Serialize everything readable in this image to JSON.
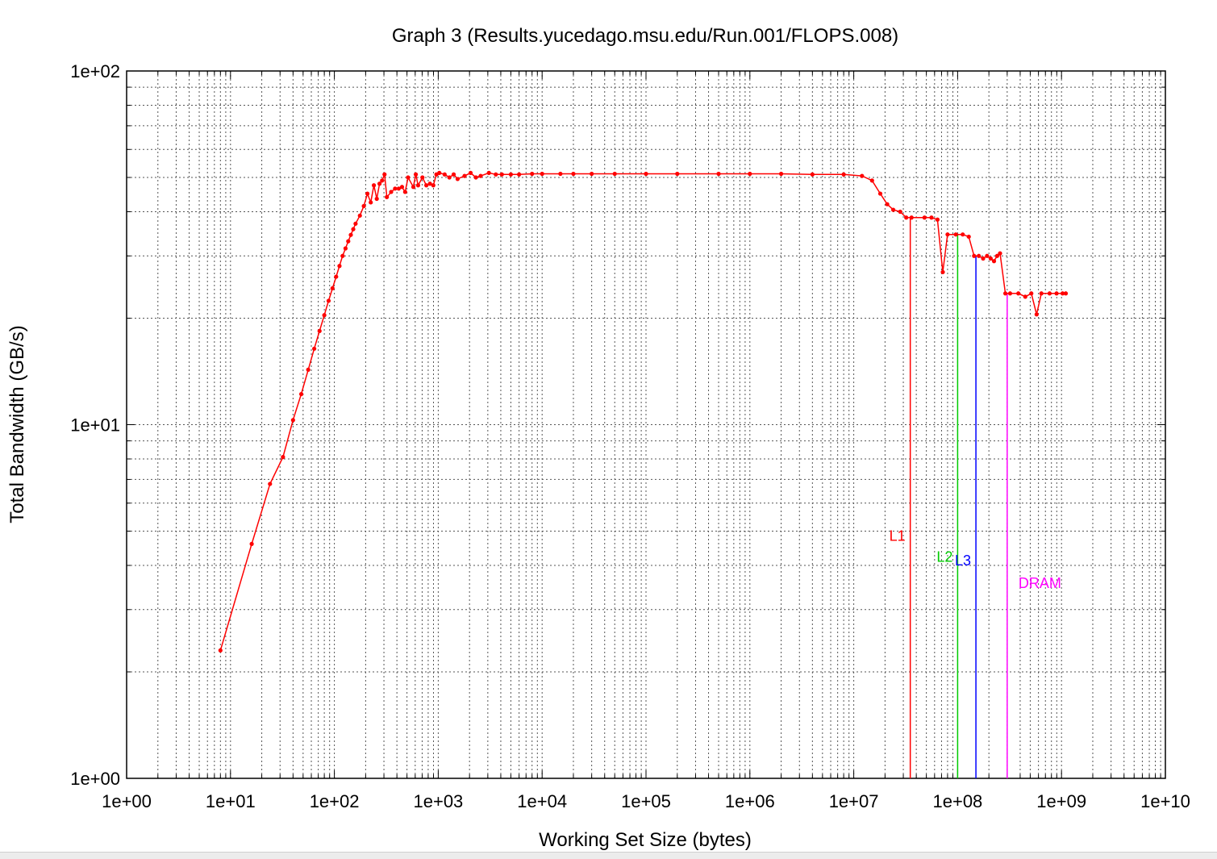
{
  "chart_data": {
    "type": "line",
    "title": "Graph 3 (Results.yucedago.msu.edu/Run.001/FLOPS.008)",
    "xlabel": "Working Set Size (bytes)",
    "ylabel": "Total Bandwidth (GB/s)",
    "x_scale": "log",
    "y_scale": "log",
    "xlim": [
      1,
      10000000000
    ],
    "ylim": [
      1,
      100
    ],
    "x_ticks": [
      "1e+00",
      "1e+01",
      "1e+02",
      "1e+03",
      "1e+04",
      "1e+05",
      "1e+06",
      "1e+07",
      "1e+08",
      "1e+09",
      "1e+10"
    ],
    "y_ticks": [
      "1e+00",
      "1e+01",
      "1e+02"
    ],
    "grid": true,
    "legend": "none",
    "series": [
      {
        "color": "#ff0000",
        "points": [
          [
            8,
            2.3
          ],
          [
            16,
            4.6
          ],
          [
            24,
            6.8
          ],
          [
            32,
            8.1
          ],
          [
            40,
            10.3
          ],
          [
            48,
            12.2
          ],
          [
            56,
            14.3
          ],
          [
            64,
            16.4
          ],
          [
            72,
            18.4
          ],
          [
            80,
            20.4
          ],
          [
            88,
            22.4
          ],
          [
            96,
            24.3
          ],
          [
            104,
            26.2
          ],
          [
            112,
            28.1
          ],
          [
            120,
            30.0
          ],
          [
            128,
            31.5
          ],
          [
            136,
            33.0
          ],
          [
            144,
            34.4
          ],
          [
            152,
            35.7
          ],
          [
            160,
            37.0
          ],
          [
            176,
            39.0
          ],
          [
            192,
            41.5
          ],
          [
            208,
            45.0
          ],
          [
            224,
            42.5
          ],
          [
            240,
            47.5
          ],
          [
            256,
            43.5
          ],
          [
            272,
            48.0
          ],
          [
            288,
            49.0
          ],
          [
            304,
            51.0
          ],
          [
            320,
            44.0
          ],
          [
            352,
            45.5
          ],
          [
            384,
            46.5
          ],
          [
            416,
            46.5
          ],
          [
            448,
            47.0
          ],
          [
            480,
            45.5
          ],
          [
            512,
            50.0
          ],
          [
            576,
            47.0
          ],
          [
            608,
            51.0
          ],
          [
            640,
            47.5
          ],
          [
            704,
            50.0
          ],
          [
            768,
            47.5
          ],
          [
            832,
            48.0
          ],
          [
            896,
            47.5
          ],
          [
            960,
            51.0
          ],
          [
            1024,
            51.5
          ],
          [
            1152,
            51.0
          ],
          [
            1280,
            50.0
          ],
          [
            1408,
            51.0
          ],
          [
            1536,
            49.5
          ],
          [
            1792,
            50.5
          ],
          [
            2048,
            51.5
          ],
          [
            2304,
            50.0
          ],
          [
            2560,
            50.5
          ],
          [
            3072,
            51.5
          ],
          [
            3584,
            51.0
          ],
          [
            4096,
            51.0
          ],
          [
            5000,
            51.0
          ],
          [
            6000,
            51.0
          ],
          [
            8000,
            51.2
          ],
          [
            10000,
            51.2
          ],
          [
            15000,
            51.2
          ],
          [
            20000,
            51.2
          ],
          [
            30000,
            51.2
          ],
          [
            50000,
            51.2
          ],
          [
            100000,
            51.2
          ],
          [
            200000,
            51.2
          ],
          [
            500000,
            51.2
          ],
          [
            1000000,
            51.2
          ],
          [
            2000000,
            51.2
          ],
          [
            4000000,
            51.0
          ],
          [
            8000000,
            51.0
          ],
          [
            12000000,
            50.5
          ],
          [
            15000000,
            49.0
          ],
          [
            18000000,
            45.0
          ],
          [
            21000000,
            42.0
          ],
          [
            24000000,
            40.5
          ],
          [
            28000000,
            40.0
          ],
          [
            32000000,
            38.5
          ],
          [
            36000000,
            38.5
          ],
          [
            48000000,
            38.5
          ],
          [
            56000000,
            38.5
          ],
          [
            64000000,
            38.0
          ],
          [
            72000000,
            27.0
          ],
          [
            80000000,
            34.5
          ],
          [
            96000000,
            34.5
          ],
          [
            112000000,
            34.5
          ],
          [
            128000000,
            34.0
          ],
          [
            144000000,
            30.0
          ],
          [
            160000000,
            30.0
          ],
          [
            176000000,
            29.5
          ],
          [
            192000000,
            30.0
          ],
          [
            208000000,
            29.5
          ],
          [
            224000000,
            29.0
          ],
          [
            240000000,
            30.0
          ],
          [
            256000000,
            30.5
          ],
          [
            288000000,
            23.5
          ],
          [
            320000000,
            23.5
          ],
          [
            384000000,
            23.5
          ],
          [
            448000000,
            23.0
          ],
          [
            512000000,
            23.5
          ],
          [
            576000000,
            20.5
          ],
          [
            640000000,
            23.5
          ],
          [
            768000000,
            23.5
          ],
          [
            896000000,
            23.5
          ],
          [
            1024000000,
            23.5
          ],
          [
            1100000000,
            23.5
          ]
        ]
      }
    ],
    "annotations": [
      {
        "label": "L1",
        "color": "#ff0000",
        "x": 35000000,
        "y_top": 38.5,
        "label_y": 4.7
      },
      {
        "label": "L2",
        "color": "#00cc00",
        "x": 100000000,
        "y_top": 34.5,
        "label_y": 4.1
      },
      {
        "label": "L3",
        "color": "#0000ff",
        "x": 150000000,
        "y_top": 30.0,
        "label_y": 4.0
      },
      {
        "label": "DRAM",
        "color": "#ff00ff",
        "x": 300000000,
        "y_top": 23.5,
        "label_y": 3.45
      }
    ]
  }
}
